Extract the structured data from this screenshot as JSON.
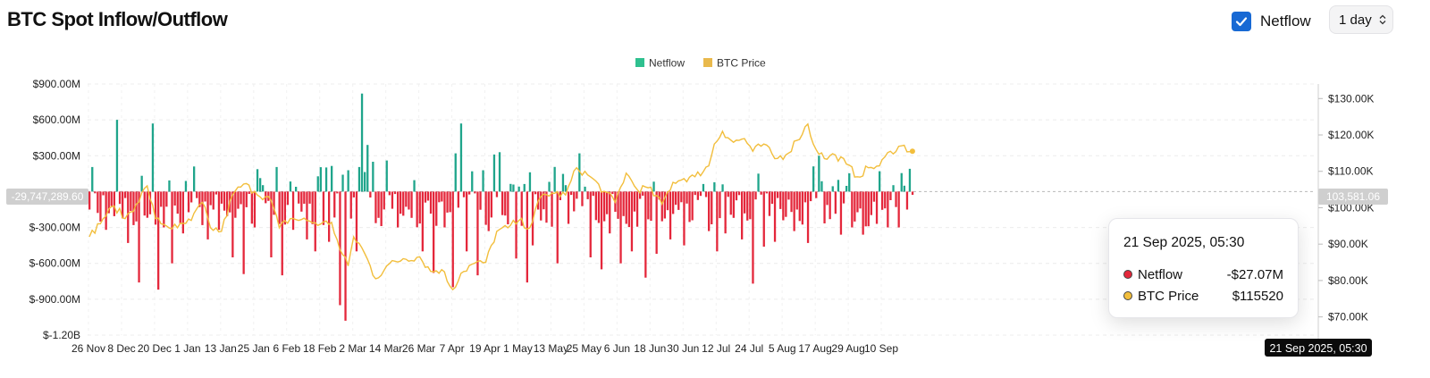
{
  "header": {
    "title": "BTC Spot Inflow/Outflow",
    "netflow_toggle": {
      "label": "Netflow",
      "checked": true
    },
    "range_select": {
      "value": "1 day"
    }
  },
  "colors": {
    "positive": "#1fa58b",
    "negative": "#e4273b",
    "price": "#f2be3c",
    "legend_netflow": "#2fc08f",
    "legend_price": "#e9b94c",
    "checkbox": "#1769d4"
  },
  "tooltip": {
    "date": "21 Sep 2025, 05:30",
    "rows": [
      {
        "label": "Netflow",
        "value": "-$27.07M",
        "dot": "#e4273b"
      },
      {
        "label": "BTC Price",
        "value": "$115520",
        "dot": "#f2be3c"
      }
    ]
  },
  "chart_data": {
    "type": "bar",
    "title": "",
    "legend": {
      "position": "top-center",
      "entries": [
        "Netflow",
        "BTC Price"
      ]
    },
    "grid": true,
    "x_start": "2024-11-26",
    "x_ticks": [
      "26 Nov",
      "8 Dec",
      "20 Dec",
      "1 Jan",
      "13 Jan",
      "25 Jan",
      "6 Feb",
      "18 Feb",
      "2 Mar",
      "14 Mar",
      "26 Mar",
      "7 Apr",
      "19 Apr",
      "1 May",
      "13 May",
      "25 May",
      "6 Jun",
      "18 Jun",
      "30 Jun",
      "12 Jul",
      "24 Jul",
      "5 Aug",
      "17 Aug",
      "29 Aug",
      "10 Sep"
    ],
    "crosshair_label": "21 Sep 2025, 05:30",
    "y_left": {
      "min": -1200000000,
      "max": 900000000,
      "ticks": [
        "$900.00M",
        "$600.00M",
        "$300.00M",
        "$-300.00M",
        "$-600.00M",
        "$-900.00M",
        "$-1.20B"
      ],
      "current_label": "-29,747,289.60"
    },
    "y_right": {
      "min": 65000,
      "max": 134000,
      "ticks": [
        "$130.00K",
        "$120.00K",
        "$110.00K",
        "$100.00K",
        "$90.00K",
        "$80.00K",
        "$70.00K"
      ],
      "current_label": "103,581.06"
    },
    "series": [
      {
        "name": "Netflow",
        "type": "bar",
        "unit": "USD",
        "keyframes": [
          [
            "2024-11-26",
            -150
          ],
          [
            "2024-11-30",
            -250
          ],
          [
            "2024-12-02",
            -320
          ],
          [
            "2024-12-04",
            -120
          ],
          [
            "2024-12-06",
            600
          ],
          [
            "2024-12-10",
            -430
          ],
          [
            "2024-12-12",
            -280
          ],
          [
            "2024-12-14",
            -760
          ],
          [
            "2024-12-16",
            -200
          ],
          [
            "2024-12-19",
            570
          ],
          [
            "2024-12-21",
            -820
          ],
          [
            "2024-12-23",
            -300
          ],
          [
            "2024-12-26",
            -600
          ],
          [
            "2024-12-30",
            -350
          ],
          [
            "2025-01-03",
            210
          ],
          [
            "2025-01-08",
            -400
          ],
          [
            "2025-01-12",
            -320
          ],
          [
            "2025-01-17",
            -550
          ],
          [
            "2025-01-21",
            -690
          ],
          [
            "2025-01-25",
            -300
          ],
          [
            "2025-01-31",
            -550
          ],
          [
            "2025-02-04",
            -700
          ],
          [
            "2025-02-08",
            -320
          ],
          [
            "2025-02-13",
            -400
          ],
          [
            "2025-02-16",
            -500
          ],
          [
            "2025-02-21",
            -420
          ],
          [
            "2025-02-25",
            -950
          ],
          [
            "2025-02-27",
            -1080
          ],
          [
            "2025-03-03",
            -500
          ],
          [
            "2025-03-05",
            820
          ],
          [
            "2025-03-07",
            390
          ],
          [
            "2025-03-09",
            250
          ],
          [
            "2025-03-11",
            -220
          ],
          [
            "2025-03-14",
            260
          ],
          [
            "2025-03-18",
            -300
          ],
          [
            "2025-03-23",
            -220
          ],
          [
            "2025-03-27",
            -500
          ],
          [
            "2025-03-31",
            -680
          ],
          [
            "2025-04-04",
            -300
          ],
          [
            "2025-04-07",
            -800
          ],
          [
            "2025-04-08",
            320
          ],
          [
            "2025-04-10",
            570
          ],
          [
            "2025-04-12",
            -500
          ],
          [
            "2025-04-16",
            -700
          ],
          [
            "2025-04-20",
            -330
          ],
          [
            "2025-04-22",
            310
          ],
          [
            "2025-04-24",
            330
          ],
          [
            "2025-04-26",
            -200
          ],
          [
            "2025-04-30",
            -560
          ],
          [
            "2025-05-04",
            -760
          ],
          [
            "2025-05-06",
            -450
          ],
          [
            "2025-05-11",
            -260
          ],
          [
            "2025-05-15",
            -600
          ],
          [
            "2025-05-19",
            -270
          ],
          [
            "2025-05-23",
            320
          ],
          [
            "2025-05-27",
            -550
          ],
          [
            "2025-05-31",
            -650
          ],
          [
            "2025-06-03",
            -350
          ],
          [
            "2025-06-07",
            -600
          ],
          [
            "2025-06-11",
            -500
          ],
          [
            "2025-06-16",
            -720
          ],
          [
            "2025-06-20",
            -520
          ],
          [
            "2025-06-25",
            -400
          ],
          [
            "2025-06-30",
            -450
          ],
          [
            "2025-07-03",
            -240
          ],
          [
            "2025-07-09",
            -330
          ],
          [
            "2025-07-12",
            -500
          ],
          [
            "2025-07-15",
            -350
          ],
          [
            "2025-07-18",
            -220
          ],
          [
            "2025-07-21",
            -400
          ],
          [
            "2025-07-25",
            -770
          ],
          [
            "2025-07-29",
            -460
          ],
          [
            "2025-08-02",
            -420
          ],
          [
            "2025-08-05",
            -240
          ],
          [
            "2025-08-09",
            -330
          ],
          [
            "2025-08-14",
            -430
          ],
          [
            "2025-08-18",
            300
          ],
          [
            "2025-08-22",
            -230
          ],
          [
            "2025-08-26",
            -360
          ],
          [
            "2025-08-30",
            -300
          ],
          [
            "2025-09-03",
            -360
          ],
          [
            "2025-09-08",
            -270
          ],
          [
            "2025-09-12",
            -300
          ],
          [
            "2025-09-16",
            -300
          ],
          [
            "2025-09-19",
            -150
          ],
          [
            "2025-09-21",
            -27.07
          ]
        ]
      },
      {
        "name": "BTC Price",
        "type": "line",
        "unit": "USD",
        "keyframes": [
          [
            "2024-11-26",
            92000
          ],
          [
            "2024-12-01",
            97000
          ],
          [
            "2024-12-05",
            100500
          ],
          [
            "2024-12-09",
            97000
          ],
          [
            "2024-12-13",
            101000
          ],
          [
            "2024-12-17",
            106000
          ],
          [
            "2024-12-20",
            97000
          ],
          [
            "2024-12-24",
            95000
          ],
          [
            "2024-12-28",
            94500
          ],
          [
            "2025-01-02",
            96500
          ],
          [
            "2025-01-06",
            101500
          ],
          [
            "2025-01-09",
            94500
          ],
          [
            "2025-01-13",
            93500
          ],
          [
            "2025-01-17",
            103500
          ],
          [
            "2025-01-21",
            106500
          ],
          [
            "2025-01-25",
            104500
          ],
          [
            "2025-01-31",
            102000
          ],
          [
            "2025-02-03",
            94500
          ],
          [
            "2025-02-07",
            97000
          ],
          [
            "2025-02-13",
            96500
          ],
          [
            "2025-02-18",
            95500
          ],
          [
            "2025-02-22",
            96000
          ],
          [
            "2025-02-25",
            88500
          ],
          [
            "2025-02-28",
            84000
          ],
          [
            "2025-03-02",
            92000
          ],
          [
            "2025-03-05",
            89000
          ],
          [
            "2025-03-10",
            80500
          ],
          [
            "2025-03-14",
            84000
          ],
          [
            "2025-03-20",
            86000
          ],
          [
            "2025-03-26",
            86500
          ],
          [
            "2025-03-30",
            82500
          ],
          [
            "2025-04-03",
            83000
          ],
          [
            "2025-04-07",
            77500
          ],
          [
            "2025-04-10",
            82000
          ],
          [
            "2025-04-14",
            84500
          ],
          [
            "2025-04-19",
            85000
          ],
          [
            "2025-04-23",
            93500
          ],
          [
            "2025-04-27",
            94500
          ],
          [
            "2025-05-01",
            96500
          ],
          [
            "2025-05-05",
            94500
          ],
          [
            "2025-05-09",
            103000
          ],
          [
            "2025-05-13",
            104000
          ],
          [
            "2025-05-18",
            103500
          ],
          [
            "2025-05-22",
            111000
          ],
          [
            "2025-05-27",
            108500
          ],
          [
            "2025-06-01",
            104500
          ],
          [
            "2025-06-05",
            101500
          ],
          [
            "2025-06-09",
            109500
          ],
          [
            "2025-06-13",
            105000
          ],
          [
            "2025-06-17",
            105500
          ],
          [
            "2025-06-22",
            101000
          ],
          [
            "2025-06-26",
            107000
          ],
          [
            "2025-06-30",
            108000
          ],
          [
            "2025-07-04",
            108500
          ],
          [
            "2025-07-09",
            111500
          ],
          [
            "2025-07-11",
            117500
          ],
          [
            "2025-07-14",
            121000
          ],
          [
            "2025-07-18",
            118000
          ],
          [
            "2025-07-22",
            119000
          ],
          [
            "2025-07-25",
            115500
          ],
          [
            "2025-07-29",
            117500
          ],
          [
            "2025-08-02",
            113500
          ],
          [
            "2025-08-06",
            114500
          ],
          [
            "2025-08-10",
            118500
          ],
          [
            "2025-08-14",
            123000
          ],
          [
            "2025-08-16",
            117500
          ],
          [
            "2025-08-20",
            113500
          ],
          [
            "2025-08-24",
            114500
          ],
          [
            "2025-08-28",
            112000
          ],
          [
            "2025-09-01",
            108500
          ],
          [
            "2025-09-05",
            111000
          ],
          [
            "2025-09-09",
            111500
          ],
          [
            "2025-09-13",
            115500
          ],
          [
            "2025-09-17",
            117000
          ],
          [
            "2025-09-21",
            115520
          ]
        ]
      }
    ]
  }
}
